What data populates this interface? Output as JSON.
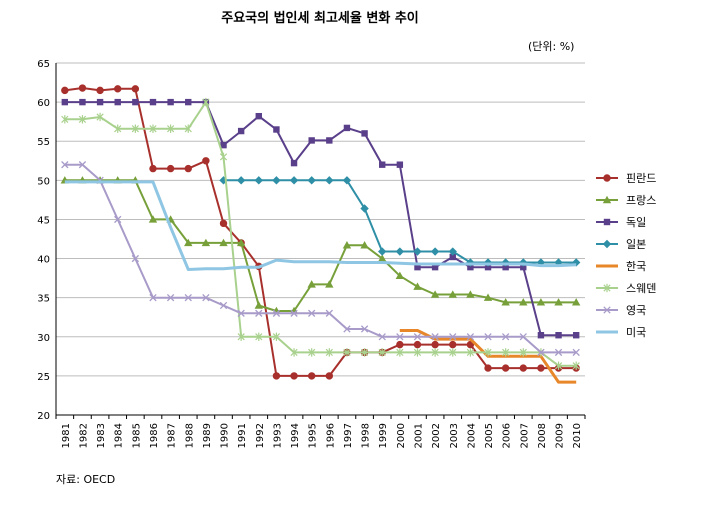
{
  "chart_data": {
    "type": "line",
    "title": "주요국의 법인세 최고세율 변화 추이",
    "unit": "(단위: %)",
    "source": "자료: OECD",
    "ylim": [
      20,
      65
    ],
    "yticks": [
      20,
      25,
      30,
      35,
      40,
      45,
      50,
      55,
      60,
      65
    ],
    "grid": "horizontal",
    "legend": "right",
    "x": [
      "1981",
      "1982",
      "1983",
      "1984",
      "1985",
      "1986",
      "1987",
      "1988",
      "1989",
      "1990",
      "1991",
      "1992",
      "1993",
      "1994",
      "1995",
      "1996",
      "1997",
      "1998",
      "1999",
      "2000",
      "2001",
      "2002",
      "2003",
      "2004",
      "2005",
      "2006",
      "2007",
      "2008",
      "2009",
      "2010"
    ],
    "series": [
      {
        "name": "핀란드",
        "color": "#a8302c",
        "marker": "circle",
        "values": [
          61.5,
          61.8,
          61.5,
          61.7,
          61.7,
          51.5,
          51.5,
          51.5,
          52.5,
          44.5,
          42,
          39,
          25,
          25,
          25,
          25,
          28,
          28,
          28,
          29,
          29,
          29,
          29,
          29,
          26,
          26,
          26,
          26,
          26,
          26
        ]
      },
      {
        "name": "프랑스",
        "color": "#77a03a",
        "marker": "triangle",
        "values": [
          50,
          50,
          50,
          50,
          50,
          45,
          45,
          42,
          42,
          42,
          42,
          34,
          33.3,
          33.3,
          36.7,
          36.7,
          41.7,
          41.7,
          40,
          37.8,
          36.4,
          35.4,
          35.4,
          35.4,
          35,
          34.4,
          34.4,
          34.4,
          34.4,
          34.4
        ]
      },
      {
        "name": "독일",
        "color": "#5a3f8a",
        "marker": "square",
        "values": [
          60,
          60,
          60,
          60,
          60,
          60,
          60,
          60,
          60,
          54.5,
          56.3,
          58.2,
          56.5,
          52.2,
          55.1,
          55.1,
          56.7,
          56,
          52,
          52,
          38.9,
          38.9,
          40.2,
          38.9,
          38.9,
          38.9,
          38.9,
          30.2,
          30.2,
          30.2
        ]
      },
      {
        "name": "일본",
        "color": "#2e8fa6",
        "marker": "diamond",
        "values": [
          null,
          null,
          null,
          null,
          null,
          null,
          null,
          null,
          null,
          50,
          50,
          50,
          50,
          50,
          50,
          50,
          50,
          46.4,
          40.9,
          40.9,
          40.9,
          40.9,
          40.9,
          39.5,
          39.5,
          39.5,
          39.5,
          39.5,
          39.5,
          39.5
        ]
      },
      {
        "name": "한국",
        "color": "#e8872a",
        "marker": "none",
        "values": [
          null,
          null,
          null,
          null,
          null,
          null,
          null,
          null,
          null,
          null,
          null,
          null,
          null,
          null,
          null,
          null,
          null,
          null,
          null,
          30.8,
          30.8,
          29.7,
          29.7,
          29.7,
          27.5,
          27.5,
          27.5,
          27.5,
          24.2,
          24.2
        ]
      },
      {
        "name": "스웨덴",
        "color": "#a9d18e",
        "marker": "star",
        "values": [
          57.8,
          57.8,
          58.1,
          56.6,
          56.6,
          56.6,
          56.6,
          56.6,
          60,
          53,
          30,
          30,
          30,
          28,
          28,
          28,
          28,
          28,
          28,
          28,
          28,
          28,
          28,
          28,
          28,
          28,
          28,
          28,
          26.3,
          26.3
        ]
      },
      {
        "name": "영국",
        "color": "#a89bc9",
        "marker": "x",
        "values": [
          52,
          52,
          50,
          45,
          40,
          35,
          35,
          35,
          35,
          34,
          33,
          33,
          33,
          33,
          33,
          33,
          31,
          31,
          30,
          30,
          30,
          30,
          30,
          30,
          30,
          30,
          30,
          28,
          28,
          28
        ]
      },
      {
        "name": "미국",
        "color": "#8fc6e3",
        "marker": "none",
        "values": [
          49.8,
          49.8,
          49.8,
          49.8,
          49.8,
          49.8,
          44,
          38.6,
          38.7,
          38.7,
          38.9,
          38.9,
          39.8,
          39.6,
          39.6,
          39.6,
          39.5,
          39.5,
          39.5,
          39.4,
          39.3,
          39.3,
          39.3,
          39.3,
          39.3,
          39.3,
          39.3,
          39.1,
          39.1,
          39.2
        ]
      }
    ]
  }
}
